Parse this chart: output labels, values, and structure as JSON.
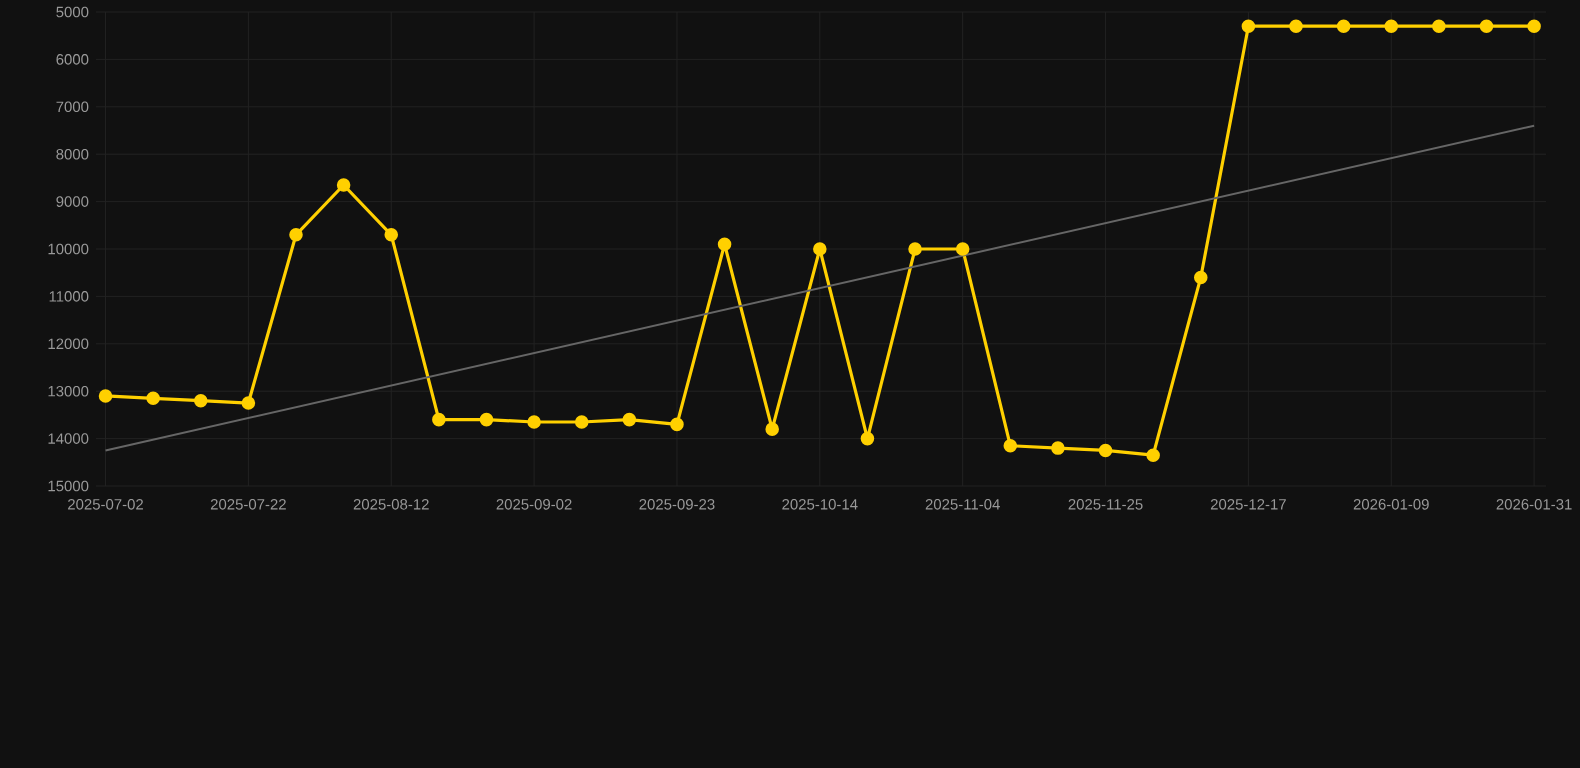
{
  "chart_data": {
    "type": "line",
    "categories": [
      "2025-07-02",
      null,
      null,
      "2025-07-22",
      null,
      null,
      "2025-08-12",
      null,
      null,
      "2025-09-02",
      null,
      null,
      "2025-09-23",
      null,
      null,
      "2025-10-14",
      null,
      null,
      "2025-11-04",
      null,
      null,
      "2025-11-25",
      null,
      null,
      "2025-12-17",
      null,
      null,
      "2026-01-09",
      null,
      null,
      "2026-01-31"
    ],
    "series": [
      {
        "color": "#ffd000",
        "marker": "circle",
        "values": [
          13100,
          13150,
          13200,
          13250,
          9700,
          8650,
          9700,
          13600,
          13600,
          13650,
          13650,
          13600,
          13700,
          9900,
          13800,
          10000,
          14000,
          10000,
          10000,
          14150,
          14200,
          14250,
          14350,
          10600,
          5300,
          5300,
          5300,
          5300,
          5300,
          5300,
          5300
        ]
      },
      {
        "type": "line",
        "color": "#666666",
        "marker": "none",
        "values": [
          14250,
          null,
          null,
          null,
          null,
          null,
          null,
          null,
          null,
          null,
          null,
          null,
          null,
          null,
          null,
          null,
          null,
          null,
          null,
          null,
          null,
          null,
          null,
          null,
          null,
          null,
          null,
          null,
          null,
          null,
          7400
        ]
      }
    ],
    "ylim": [
      15000,
      5000
    ],
    "yticks": [
      5000,
      6000,
      7000,
      8000,
      9000,
      10000,
      11000,
      12000,
      13000,
      14000,
      15000
    ],
    "grid": true
  }
}
